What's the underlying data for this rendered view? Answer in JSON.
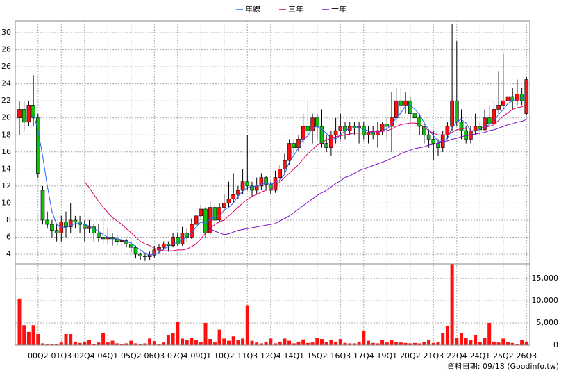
{
  "chart_data": {
    "type": "candlestick",
    "categories": [
      null,
      null,
      null,
      null,
      "00Q2",
      null,
      null,
      null,
      null,
      "01Q3",
      null,
      null,
      null,
      null,
      "02Q4",
      null,
      null,
      null,
      null,
      "04Q1",
      null,
      null,
      null,
      null,
      "05Q2",
      null,
      null,
      null,
      null,
      "06Q3",
      null,
      null,
      null,
      null,
      "07Q4",
      null,
      null,
      null,
      null,
      "09Q1",
      null,
      null,
      null,
      null,
      "10Q2",
      null,
      null,
      null,
      null,
      "11Q3",
      null,
      null,
      null,
      null,
      "12Q4",
      null,
      null,
      null,
      null,
      "14Q1",
      null,
      null,
      null,
      null,
      "15Q2",
      null,
      null,
      null,
      null,
      "16Q3",
      null,
      null,
      null,
      null,
      "17Q4",
      null,
      null,
      null,
      null,
      "19Q1",
      null,
      null,
      null,
      null,
      "20Q2",
      null,
      null,
      null,
      null,
      "21Q3",
      null,
      null,
      null,
      null,
      "22Q4",
      null,
      null,
      null,
      null,
      "24Q1",
      null,
      null,
      null,
      null,
      "25Q2",
      null,
      null,
      null,
      null,
      "26Q3"
    ],
    "open": [
      20,
      21,
      19.5,
      21.5,
      20,
      11.5,
      8,
      7.5,
      6.8,
      6.5,
      7.8,
      7.2,
      8,
      7.8,
      7.5,
      7,
      7.2,
      6.5,
      6,
      5.8,
      6,
      5.8,
      5.5,
      5.6,
      5.2,
      4.8,
      4,
      3.8,
      3.7,
      3.9,
      4.5,
      4.8,
      5.2,
      5,
      6,
      5.2,
      6.5,
      6,
      7.5,
      8.5,
      9.3,
      6.5,
      9.5,
      8,
      9.5,
      10,
      10.5,
      11,
      11.5,
      12.5,
      12,
      11.5,
      12,
      13,
      12.2,
      11.5,
      13,
      14,
      15,
      17,
      16.5,
      17.5,
      19,
      18.5,
      20,
      19,
      17,
      16.5,
      18,
      18.5,
      19,
      18.5,
      19,
      18.8,
      19,
      18,
      18.3,
      18,
      18.5,
      19.3,
      19,
      20,
      22,
      21.5,
      22,
      20.5,
      20,
      19,
      18,
      17.5,
      17,
      16.5,
      18,
      19,
      22,
      19.5,
      18.5,
      17.5,
      18.5,
      19,
      18.6,
      20,
      19.3,
      21,
      21.5,
      22,
      22.5,
      22,
      22.8,
      20.5
    ],
    "high": [
      22,
      22,
      22,
      25,
      20.5,
      12,
      9,
      8,
      7.5,
      8.5,
      9,
      10,
      8.5,
      8.5,
      8,
      8,
      7.5,
      7.5,
      8.5,
      7,
      6.5,
      6.2,
      6,
      5.8,
      5.5,
      5,
      4.2,
      4.2,
      4.3,
      5,
      5.2,
      5.5,
      5.5,
      6.5,
      6.5,
      7.2,
      7,
      8.2,
      8.8,
      9.8,
      9.5,
      10.2,
      9.8,
      10,
      11,
      12.5,
      13.5,
      12,
      14,
      18,
      12.5,
      13,
      13.5,
      13.2,
      12.5,
      13.8,
      14.5,
      15.8,
      17.5,
      17.5,
      18,
      20.5,
      22,
      20.5,
      20.5,
      21,
      18,
      18.5,
      20,
      20.5,
      19.5,
      19.5,
      19.5,
      19.5,
      19.5,
      19,
      19,
      19.5,
      19.5,
      20,
      23,
      23.5,
      23.5,
      23,
      22.5,
      21,
      20.5,
      19.5,
      18.5,
      18.5,
      17.5,
      18.5,
      19.5,
      31,
      29,
      21,
      19,
      19,
      20.5,
      19.5,
      21,
      21.5,
      22,
      25.5,
      27.5,
      24,
      23.5,
      24.5,
      23.5,
      24.8
    ],
    "low": [
      18,
      18.5,
      19,
      19,
      13,
      7.5,
      7,
      6,
      5.5,
      5.5,
      6,
      6.5,
      7,
      6.5,
      5.5,
      6.5,
      5.5,
      5.5,
      5.2,
      5.2,
      5,
      5,
      5,
      4.8,
      4.2,
      3.5,
      3.3,
      3.2,
      3.3,
      3.6,
      4,
      4.5,
      4.3,
      4.8,
      5,
      5,
      5.5,
      5.8,
      7,
      8,
      6,
      6.2,
      7.5,
      7.8,
      9,
      9.5,
      10,
      10.5,
      11,
      11.5,
      10.8,
      11,
      11.5,
      11.5,
      11,
      11.2,
      12.5,
      13.5,
      14.5,
      15.5,
      16,
      17,
      17.5,
      17,
      17.5,
      16.5,
      16,
      15.5,
      17,
      17.5,
      17.5,
      18,
      18,
      17,
      17.5,
      17,
      17.5,
      16.5,
      18,
      17.5,
      16,
      19.5,
      20,
      20.5,
      19.5,
      18.5,
      18,
      17,
      16.5,
      15,
      15.5,
      16,
      17.5,
      18.5,
      19,
      17.5,
      17,
      17,
      18,
      18,
      18.5,
      19,
      19,
      20.5,
      21,
      21.5,
      21,
      21.5,
      21.5,
      20.3
    ],
    "close": [
      21,
      19.5,
      21.5,
      20,
      13.5,
      8,
      7.5,
      6.8,
      6.5,
      7.8,
      7.2,
      8,
      7.8,
      7.5,
      7,
      7.2,
      6.5,
      6,
      5.8,
      6,
      5.8,
      5.5,
      5.6,
      5.2,
      4.8,
      4,
      3.8,
      3.7,
      3.9,
      4.5,
      4.8,
      5.2,
      5,
      6,
      5.2,
      6.5,
      6,
      7.5,
      8.5,
      9.3,
      6.5,
      9.5,
      8,
      9.5,
      10,
      10.5,
      11,
      11.5,
      12.5,
      12,
      11.5,
      12,
      13,
      12.2,
      11.5,
      13,
      14,
      15,
      17,
      16.5,
      17.5,
      19,
      18.5,
      20,
      19,
      17,
      16.5,
      18,
      18.5,
      19,
      18.5,
      19,
      18.8,
      19,
      18,
      18.3,
      18,
      18.5,
      19.3,
      19,
      20,
      22,
      21.5,
      22,
      20.5,
      20,
      19,
      18,
      17.5,
      17,
      16.5,
      18,
      19,
      22,
      19.5,
      18.5,
      17.5,
      18.5,
      19,
      18.6,
      20,
      19.3,
      21,
      21.5,
      22,
      22.5,
      22,
      22.8,
      22,
      24.5
    ],
    "volume": [
      10500,
      4500,
      3000,
      4500,
      2500,
      400,
      300,
      300,
      300,
      600,
      2500,
      2500,
      800,
      500,
      800,
      1200,
      300,
      600,
      2800,
      600,
      1000,
      400,
      300,
      400,
      1000,
      400,
      300,
      400,
      1500,
      900,
      300,
      600,
      2300,
      2800,
      5200,
      1500,
      1200,
      1700,
      1200,
      700,
      5000,
      1400,
      600,
      3500,
      1500,
      1000,
      2000,
      1200,
      1500,
      9000,
      1000,
      600,
      400,
      800,
      1500,
      400,
      800,
      1500,
      1000,
      400,
      800,
      1300,
      500,
      600,
      1600,
      1400,
      700,
      1200,
      800,
      1400,
      500,
      400,
      400,
      800,
      3200,
      1000,
      500,
      400,
      1200,
      600,
      1200,
      700,
      600,
      500,
      400,
      500,
      400,
      700,
      1200,
      500,
      700,
      2800,
      4300,
      18500,
      1600,
      2800,
      1700,
      1200,
      2200,
      700,
      1600,
      5000,
      800,
      600,
      1500,
      700,
      500,
      300,
      1200,
      800
    ],
    "series": [
      {
        "name": "年線",
        "color": "#2a62ff",
        "values": [
          null,
          null,
          null,
          20.5,
          18.5,
          15.5,
          12,
          9,
          7.5,
          7.2,
          7.1,
          7.4,
          7.6,
          7.6,
          7.5,
          7.3,
          7,
          6.7,
          6.3,
          6,
          5.9,
          5.8,
          5.7,
          5.5,
          5.3,
          4.9,
          4.5,
          4.1,
          3.9,
          4,
          4.2,
          4.6,
          4.9,
          5.2,
          5.4,
          5.7,
          6,
          6.5,
          7.2,
          7.8,
          7.5,
          8.2,
          8.3,
          8.4,
          9.2,
          9.5,
          10,
          10.8,
          11.4,
          11.8,
          11.9,
          12,
          12.2,
          12.3,
          12.2,
          12.4,
          12.7,
          13.4,
          14.8,
          15.6,
          16.5,
          17.5,
          17.9,
          18.8,
          19,
          18.6,
          18.2,
          17.6,
          17.5,
          18,
          18.5,
          18.8,
          18.8,
          18.9,
          18.6,
          18.5,
          18.3,
          18.2,
          18.5,
          18.7,
          19.2,
          20,
          20.6,
          21.4,
          21.5,
          21,
          20.4,
          19.4,
          18.6,
          17.9,
          17.3,
          17.2,
          17.6,
          18.8,
          19.6,
          19.8,
          19.4,
          18.5,
          18.4,
          18.7,
          19,
          19.2,
          19.7,
          20.4,
          21,
          21.7,
          22,
          22.2,
          22.3,
          22.9
        ]
      },
      {
        "name": "三年",
        "color": "#d8006a",
        "values": [
          null,
          null,
          null,
          null,
          null,
          null,
          null,
          null,
          null,
          null,
          null,
          null,
          null,
          null,
          12.5,
          11.8,
          11,
          10.2,
          9.5,
          8.9,
          8.3,
          7.9,
          7.5,
          7,
          6.5,
          6,
          5.5,
          5.2,
          5,
          4.7,
          4.5,
          4.4,
          4.4,
          4.4,
          4.5,
          4.5,
          4.6,
          4.9,
          5.2,
          5.8,
          6.5,
          7,
          7.5,
          7.8,
          8,
          8.5,
          9,
          9.5,
          10,
          10.4,
          10.8,
          11,
          11.3,
          11.5,
          11.6,
          12,
          12.5,
          13,
          13.5,
          14,
          14.5,
          15.2,
          15.8,
          16.3,
          16.8,
          17.1,
          17.4,
          17.6,
          17.8,
          17.9,
          18,
          18.1,
          18.2,
          18.2,
          18.2,
          18.3,
          18.4,
          18.4,
          18.4,
          18.5,
          18.7,
          19,
          19.2,
          19.3,
          19.4,
          19.4,
          19.3,
          18.9,
          18.5,
          18.2,
          18,
          18,
          18,
          18.3,
          18.6,
          18.7,
          18.8,
          18.8,
          18.8,
          18.8,
          18.9,
          19,
          19.2,
          19.7,
          20.2,
          20.6,
          21,
          21.2,
          21.3,
          21.6
        ]
      },
      {
        "name": "十年",
        "color": "#7a10c8",
        "values": [
          null,
          null,
          null,
          null,
          null,
          null,
          null,
          null,
          null,
          null,
          null,
          null,
          null,
          null,
          null,
          null,
          null,
          null,
          null,
          null,
          null,
          null,
          null,
          null,
          null,
          null,
          null,
          null,
          null,
          null,
          null,
          null,
          null,
          null,
          null,
          null,
          null,
          null,
          null,
          null,
          null,
          7,
          6.7,
          6.5,
          6.3,
          6.4,
          6.6,
          6.8,
          6.9,
          7,
          7.1,
          7.2,
          7.3,
          7.4,
          7.5,
          7.6,
          7.9,
          8.2,
          8.5,
          8.9,
          9.3,
          9.7,
          10.1,
          10.5,
          10.9,
          11.2,
          11.5,
          11.9,
          12.3,
          12.6,
          13,
          13.2,
          13.5,
          13.8,
          14,
          14.2,
          14.4,
          14.6,
          14.8,
          15,
          15.3,
          15.5,
          15.8,
          16,
          16.2,
          16.4,
          16.5,
          16.6,
          16.8,
          16.9,
          17,
          17.2,
          17.3,
          17.5,
          17.6,
          17.8,
          17.9,
          18,
          18.1,
          18.2,
          18.3,
          18.5,
          18.6,
          18.8,
          19,
          19.2,
          19.3,
          19.5,
          19.6,
          19.8
        ]
      }
    ],
    "up_color": "#ff1010",
    "down_color": "#10c010",
    "ylim": [
      2.86,
      31.39
    ],
    "yticks": [
      4,
      6,
      8,
      10,
      12,
      14,
      16,
      18,
      20,
      22,
      24,
      26,
      28,
      30
    ],
    "y2lim": [
      0,
      18300
    ],
    "y2ticks": [
      0,
      {
        "value": 5000,
        "label": "5,000"
      },
      {
        "value": 10000,
        "label": "10,000"
      },
      {
        "value": 15000,
        "label": "15,000"
      }
    ],
    "grid": true,
    "legend": "top",
    "source_note": "資料日期: 09/18 (Goodinfo.tw)"
  }
}
